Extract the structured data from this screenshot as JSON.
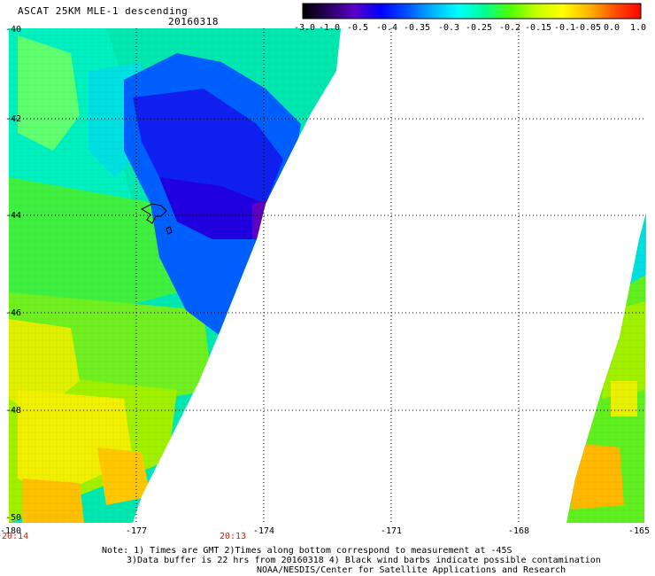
{
  "header": {
    "title": "ASCAT 25KM MLE-1 descending",
    "date": "20160318"
  },
  "colorbar": {
    "labels": [
      "-3.0",
      "-1.0",
      "-0.5",
      "-0.4",
      "-0.35",
      "-0.3",
      "-0.25",
      "-0.2",
      "-0.15",
      "-0.1",
      "-0.05",
      "0.0",
      "1.0"
    ],
    "colors": [
      "#000000",
      "#2a0060",
      "#5a00c8",
      "#0000ff",
      "#0050ff",
      "#00b4ff",
      "#00ffff",
      "#00ff90",
      "#50ff00",
      "#c8ff00",
      "#ffff00",
      "#ffb400",
      "#ff5000",
      "#ff0000"
    ]
  },
  "axes": {
    "lat_labels": [
      "-40",
      "-42",
      "-44",
      "-46",
      "-48",
      "-50"
    ],
    "lon_labels": [
      "-180",
      "-177",
      "-174",
      "-171",
      "-168",
      "-165"
    ]
  },
  "times": {
    "left": "20:14",
    "mid": "20:13"
  },
  "notes": {
    "line1": "Note: 1) Times are GMT 2)Times along bottom correspond to measurement at -45S",
    "line2": "3)Data buffer is 22 hrs from 20160318 4) Black wind barbs indicate possible contamination",
    "line3": "NOAA/NESDIS/Center for Satellite Applications and Research"
  }
}
